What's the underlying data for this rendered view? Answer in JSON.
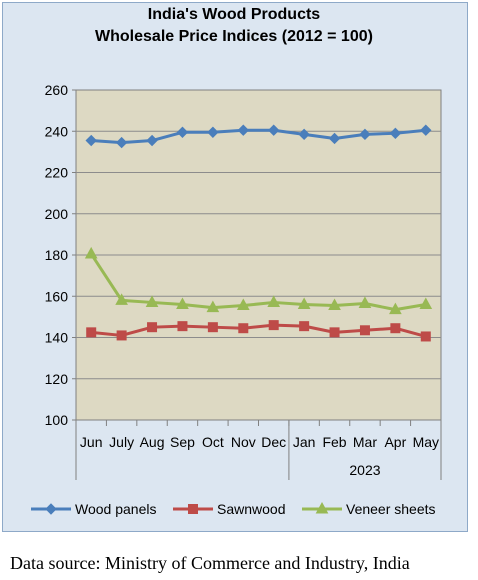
{
  "chart_data": {
    "type": "line",
    "title": "India's Wood Products",
    "subtitle": "Wholesale Price Indices (2012 = 100)",
    "categories": [
      "Jun",
      "July",
      "Aug",
      "Sep",
      "Oct",
      "Nov",
      "Dec",
      "Jan",
      "Feb",
      "Mar",
      "Apr",
      "May"
    ],
    "year_label": "2023",
    "ylim": [
      100,
      260
    ],
    "yticks": [
      100,
      120,
      140,
      160,
      180,
      200,
      220,
      240,
      260
    ],
    "grid": true,
    "legend_position": "bottom",
    "plot_background": "#ddd9c3",
    "series": [
      {
        "name": "Wood panels",
        "color": "#4a7ebb",
        "marker": "diamond",
        "values": [
          235.5,
          234.5,
          235.5,
          239.5,
          239.5,
          240.5,
          240.5,
          238.5,
          236.5,
          238.5,
          239.0,
          240.5
        ]
      },
      {
        "name": "Sawnwood",
        "color": "#be4b48",
        "marker": "square",
        "values": [
          142.5,
          141.0,
          145.0,
          145.5,
          145.0,
          144.5,
          146.0,
          145.5,
          142.5,
          143.5,
          144.5,
          140.5
        ]
      },
      {
        "name": "Veneer sheets",
        "color": "#98b954",
        "marker": "triangle",
        "values": [
          180.5,
          158.0,
          157.0,
          156.0,
          154.5,
          155.5,
          157.0,
          156.0,
          155.5,
          156.5,
          153.5,
          156.0
        ]
      }
    ]
  },
  "source_note": "Data source: Ministry of Commerce and Industry, India"
}
